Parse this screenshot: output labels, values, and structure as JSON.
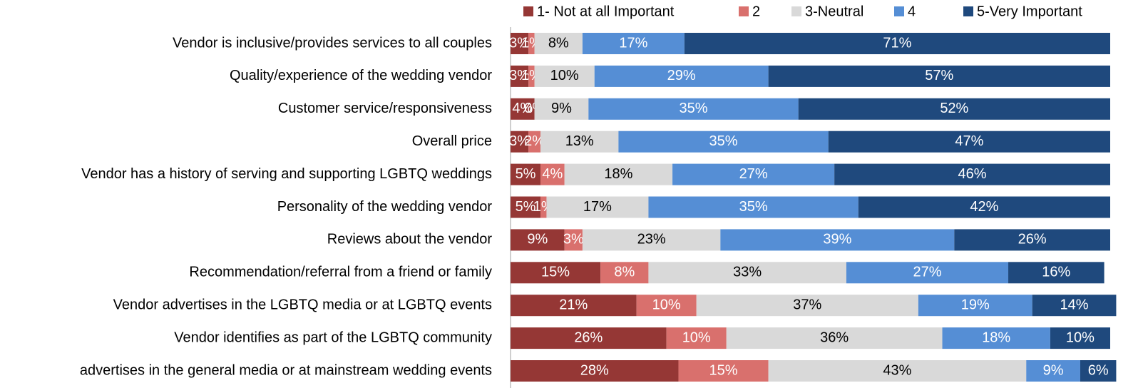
{
  "chart_data": {
    "type": "stacked_bar_horizontal",
    "categories": [
      "Vendor is inclusive/provides services to all couples",
      "Quality/experience of the wedding vendor",
      "Customer service/responsiveness",
      "Overall price",
      "Vendor has a history of serving and supporting LGBTQ weddings",
      "Personality of the wedding vendor",
      "Reviews about the vendor",
      "Recommendation/referral from a friend or family",
      "Vendor advertises in the LGBTQ media or at LGBTQ events",
      "Vendor identifies as part of the LGBTQ community",
      "advertises in the general media or at mainstream wedding events"
    ],
    "xlim": [
      0,
      100
    ],
    "legend": "top",
    "series": [
      {
        "name": "1- Not at all Important",
        "color": "#953735",
        "values": [
          3,
          3,
          4,
          3,
          5,
          5,
          9,
          15,
          21,
          26,
          28
        ],
        "value_labels": [
          "3%",
          "3%",
          "4%",
          "3%",
          "5%",
          "5%",
          "9%",
          "15%",
          "21%",
          "26%",
          "28%"
        ]
      },
      {
        "name": "2",
        "color": "#d9706d",
        "values": [
          1,
          1,
          0,
          2,
          4,
          1,
          3,
          8,
          10,
          10,
          15
        ],
        "value_labels": [
          "1%",
          "1%",
          "0%",
          "2%",
          "4%",
          "1%",
          "3%",
          "8%",
          "10%",
          "10%",
          "15%"
        ]
      },
      {
        "name": "3-Neutral",
        "color": "#d9d9d9",
        "values": [
          8,
          10,
          9,
          13,
          18,
          17,
          23,
          33,
          37,
          36,
          43
        ],
        "value_labels": [
          "8%",
          "10%",
          "9%",
          "13%",
          "18%",
          "17%",
          "23%",
          "33%",
          "37%",
          "36%",
          "43%"
        ]
      },
      {
        "name": "4",
        "color": "#558ed5",
        "values": [
          17,
          29,
          35,
          35,
          27,
          35,
          39,
          27,
          19,
          18,
          9
        ],
        "value_labels": [
          "17%",
          "29%",
          "35%",
          "35%",
          "27%",
          "35%",
          "39%",
          "27%",
          "19%",
          "18%",
          "9%"
        ]
      },
      {
        "name": "5-Very Important",
        "color": "#1f497d",
        "values": [
          71,
          57,
          52,
          47,
          46,
          42,
          26,
          16,
          14,
          10,
          6
        ],
        "value_labels": [
          "71%",
          "57%",
          "52%",
          "47%",
          "46%",
          "42%",
          "26%",
          "16%",
          "14%",
          "10%",
          "6%"
        ]
      }
    ]
  }
}
